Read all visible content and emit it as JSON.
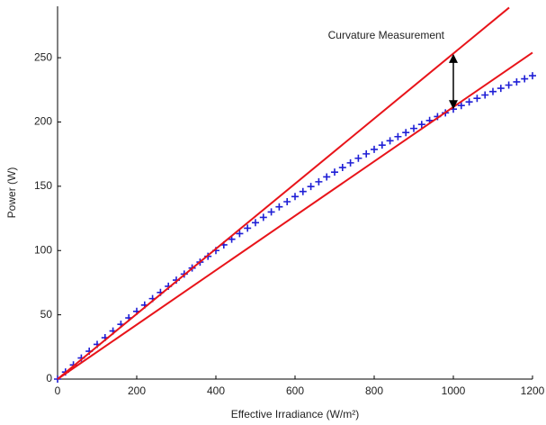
{
  "chart_data": {
    "type": "scatter",
    "x_label": "Effective Irradiance (W/m²)",
    "y_label": "Power (W)",
    "xlim": [
      0,
      1200
    ],
    "ylim": [
      0,
      290
    ],
    "xticks": [
      0,
      200,
      400,
      600,
      800,
      1000,
      1200
    ],
    "yticks": [
      0,
      50,
      100,
      150,
      200,
      250
    ],
    "grid": false,
    "series": [
      {
        "color": "#1f1fd6",
        "marker": "+",
        "x": [
          0,
          20,
          40,
          60,
          80,
          100,
          120,
          140,
          160,
          180,
          200,
          220,
          240,
          260,
          280,
          300,
          320,
          340,
          360,
          380,
          400,
          420,
          440,
          460,
          480,
          500,
          520,
          540,
          560,
          580,
          600,
          620,
          640,
          660,
          680,
          700,
          720,
          740,
          760,
          780,
          800,
          820,
          840,
          860,
          880,
          900,
          920,
          940,
          960,
          980,
          1000,
          1020,
          1040,
          1060,
          1080,
          1100,
          1120,
          1140,
          1160,
          1180,
          1200
        ],
        "values": [
          0,
          5.5,
          11.0,
          16.4,
          21.7,
          27.0,
          32.2,
          37.4,
          42.6,
          47.6,
          52.7,
          57.6,
          62.6,
          67.4,
          72.2,
          77.0,
          81.7,
          86.4,
          91.0,
          95.5,
          100.0,
          104.4,
          108.8,
          113.2,
          117.4,
          121.7,
          125.8,
          130.0,
          134.0,
          138.0,
          142.0,
          145.9,
          149.8,
          153.5,
          157.3,
          161.0,
          164.6,
          168.2,
          171.8,
          175.2,
          178.7,
          182.0,
          185.4,
          188.6,
          191.8,
          195.0,
          198.1,
          201.2,
          204.2,
          207.1,
          210.0,
          212.8,
          215.6,
          218.4,
          221.0,
          223.7,
          226.2,
          228.7,
          231.2,
          233.6,
          236.0
        ]
      },
      {
        "color": "#e8141a",
        "marker": "line",
        "x": [
          0,
          1141
        ],
        "values": [
          0,
          289
        ]
      },
      {
        "color": "#e8141a",
        "marker": "line",
        "x": [
          0,
          1200
        ],
        "values": [
          0,
          254
        ]
      }
    ],
    "annotation": {
      "text": "Curvature Measurement",
      "x": 1000,
      "y": [
        210,
        253
      ],
      "color": "#000000"
    }
  }
}
